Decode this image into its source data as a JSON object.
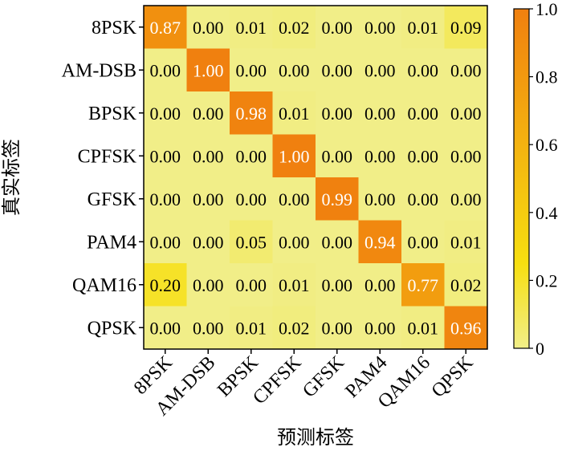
{
  "chart_data": {
    "type": "heatmap",
    "xlabel": "预测标签",
    "ylabel": "真实标签",
    "x_categories": [
      "8PSK",
      "AM-DSB",
      "BPSK",
      "CPFSK",
      "GFSK",
      "PAM4",
      "QAM16",
      "QPSK"
    ],
    "y_categories": [
      "8PSK",
      "AM-DSB",
      "BPSK",
      "CPFSK",
      "GFSK",
      "PAM4",
      "QAM16",
      "QPSK"
    ],
    "values": [
      [
        0.87,
        0.0,
        0.01,
        0.02,
        0.0,
        0.0,
        0.01,
        0.09
      ],
      [
        0.0,
        1.0,
        0.0,
        0.0,
        0.0,
        0.0,
        0.0,
        0.0
      ],
      [
        0.0,
        0.0,
        0.98,
        0.01,
        0.0,
        0.0,
        0.0,
        0.0
      ],
      [
        0.0,
        0.0,
        0.0,
        1.0,
        0.0,
        0.0,
        0.0,
        0.0
      ],
      [
        0.0,
        0.0,
        0.0,
        0.0,
        0.99,
        0.0,
        0.0,
        0.0
      ],
      [
        0.0,
        0.0,
        0.05,
        0.0,
        0.0,
        0.94,
        0.0,
        0.01
      ],
      [
        0.2,
        0.0,
        0.0,
        0.01,
        0.0,
        0.0,
        0.77,
        0.02
      ],
      [
        0.0,
        0.0,
        0.01,
        0.02,
        0.0,
        0.0,
        0.01,
        0.96
      ]
    ],
    "value_labels": [
      [
        "0.87",
        "0.00",
        "0.01",
        "0.02",
        "0.00",
        "0.00",
        "0.01",
        "0.09"
      ],
      [
        "0.00",
        "1.00",
        "0.00",
        "0.00",
        "0.00",
        "0.00",
        "0.00",
        "0.00"
      ],
      [
        "0.00",
        "0.00",
        "0.98",
        "0.01",
        "0.00",
        "0.00",
        "0.00",
        "0.00"
      ],
      [
        "0.00",
        "0.00",
        "0.00",
        "1.00",
        "0.00",
        "0.00",
        "0.00",
        "0.00"
      ],
      [
        "0.00",
        "0.00",
        "0.00",
        "0.00",
        "0.99",
        "0.00",
        "0.00",
        "0.00"
      ],
      [
        "0.00",
        "0.00",
        "0.05",
        "0.00",
        "0.00",
        "0.94",
        "0.00",
        "0.01"
      ],
      [
        "0.20",
        "0.00",
        "0.00",
        "0.01",
        "0.00",
        "0.00",
        "0.77",
        "0.02"
      ],
      [
        "0.00",
        "0.00",
        "0.01",
        "0.02",
        "0.00",
        "0.00",
        "0.01",
        "0.96"
      ]
    ],
    "colorbar": {
      "range": [
        0,
        1
      ],
      "ticks": [
        0,
        0.2,
        0.4,
        0.6,
        0.8,
        1.0
      ],
      "tick_labels": [
        "0",
        "0.2",
        "0.4",
        "0.6",
        "0.8",
        "1.0"
      ],
      "low_color": "#f1ee88",
      "mid_color": "#f7df10",
      "high_color": "#f0800f"
    },
    "legend_position": "right",
    "grid": false
  }
}
